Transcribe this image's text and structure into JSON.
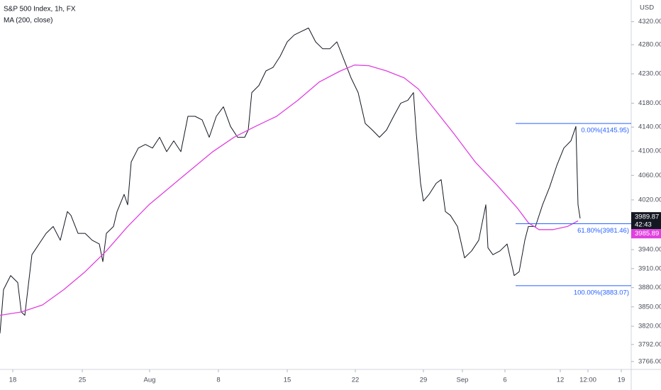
{
  "chart_data": {
    "type": "line",
    "log_scale": true,
    "grid": false,
    "axis_unit": "USD",
    "series": [
      {
        "name": "S&P 500 Index, 1h, FX",
        "color": "#131722",
        "x": [
          0,
          5,
          15,
          25,
          30,
          35,
          45,
          55,
          65,
          75,
          85,
          95,
          100,
          110,
          120,
          130,
          140,
          145,
          150,
          160,
          165,
          175,
          180,
          185,
          195,
          205,
          215,
          225,
          235,
          245,
          255,
          265,
          275,
          285,
          295,
          305,
          315,
          325,
          335,
          345,
          350,
          355,
          365,
          375,
          385,
          395,
          405,
          415,
          425,
          435,
          445,
          455,
          465,
          475,
          485,
          495,
          505,
          515,
          525,
          535,
          545,
          555,
          565,
          575,
          583,
          587,
          593,
          597,
          605,
          615,
          622,
          628,
          635,
          645,
          655,
          665,
          675,
          685,
          688,
          695,
          705,
          715,
          725,
          732,
          740,
          745,
          755,
          765,
          775,
          785,
          795,
          805,
          812,
          815,
          818
        ],
        "values": [
          3809,
          3877,
          3899,
          3888,
          3842,
          3837,
          3932,
          3949,
          3966,
          3977,
          3955,
          4001,
          3995,
          3966,
          3966,
          3955,
          3949,
          3921,
          3966,
          3977,
          4001,
          4029,
          4012,
          4082,
          4105,
          4111,
          4105,
          4123,
          4099,
          4117,
          4099,
          4158,
          4158,
          4152,
          4123,
          4158,
          4174,
          4141,
          4123,
          4123,
          4135,
          4198,
          4210,
          4235,
          4241,
          4260,
          4285,
          4297,
          4303,
          4309,
          4285,
          4273,
          4273,
          4285,
          4254,
          4223,
          4198,
          4146,
          4135,
          4123,
          4135,
          4158,
          4180,
          4185,
          4198,
          4129,
          4047,
          4018,
          4029,
          4047,
          4053,
          4001,
          3995,
          3977,
          3927,
          3938,
          3955,
          4012,
          3943,
          3932,
          3938,
          3949,
          3899,
          3905,
          3955,
          3977,
          3977,
          4012,
          4041,
          4076,
          4105,
          4117,
          4141,
          4012,
          3990
        ]
      },
      {
        "name": "MA (200, close)",
        "color": "#e040e0",
        "x": [
          0,
          30,
          60,
          90,
          120,
          150,
          180,
          210,
          240,
          270,
          300,
          330,
          360,
          390,
          420,
          450,
          480,
          500,
          520,
          545,
          570,
          590,
          610,
          640,
          670,
          700,
          730,
          745,
          760,
          780,
          800,
          815
        ],
        "values": [
          3837,
          3842,
          3853,
          3877,
          3905,
          3938,
          3977,
          4012,
          4041,
          4070,
          4099,
          4123,
          4141,
          4158,
          4185,
          4216,
          4235,
          4245,
          4244,
          4235,
          4223,
          4204,
          4174,
          4129,
          4082,
          4045,
          4006,
          3983,
          3972,
          3972,
          3977,
          3986
        ]
      }
    ],
    "xlim": [
      0,
      890
    ],
    "xticks": [
      {
        "value": 18,
        "label": "18"
      },
      {
        "value": 116,
        "label": "25"
      },
      {
        "value": 211,
        "label": "Aug"
      },
      {
        "value": 308,
        "label": "8"
      },
      {
        "value": 405,
        "label": "15"
      },
      {
        "value": 501,
        "label": "22"
      },
      {
        "value": 597,
        "label": "29"
      },
      {
        "value": 652,
        "label": "Sep"
      },
      {
        "value": 712,
        "label": "6"
      },
      {
        "value": 790,
        "label": "12"
      },
      {
        "value": 829,
        "label": "12:00"
      },
      {
        "value": 876,
        "label": "19"
      }
    ],
    "ylim": [
      3755,
      4358
    ],
    "yticks": [
      {
        "value": 4320,
        "label": "4320.00"
      },
      {
        "value": 4280,
        "label": "4280.00"
      },
      {
        "value": 4230,
        "label": "4230.00"
      },
      {
        "value": 4180,
        "label": "4180.00"
      },
      {
        "value": 4140,
        "label": "4140.00"
      },
      {
        "value": 4100,
        "label": "4100.00"
      },
      {
        "value": 4060,
        "label": "4060.00"
      },
      {
        "value": 4020,
        "label": "4020.00"
      },
      {
        "value": 3940,
        "label": "3940.00"
      },
      {
        "value": 3910,
        "label": "3910.00"
      },
      {
        "value": 3880,
        "label": "3880.00"
      },
      {
        "value": 3850,
        "label": "3850.00"
      },
      {
        "value": 3820,
        "label": "3820.00"
      },
      {
        "value": 3792,
        "label": "3792.00"
      },
      {
        "value": 3766,
        "label": "3766.00"
      }
    ],
    "fib_start_x": 727,
    "fib_color": "#2962ff",
    "fib_levels": [
      {
        "value": 4145.95,
        "label": "0.00%(4145.95)"
      },
      {
        "value": 3981.46,
        "label": "61.80%(3981.46)"
      },
      {
        "value": 3883.07,
        "label": "100.00%(3883.07)"
      }
    ],
    "last_price": 3989.87,
    "countdown": "42:43",
    "ma_last": 3985.89
  }
}
